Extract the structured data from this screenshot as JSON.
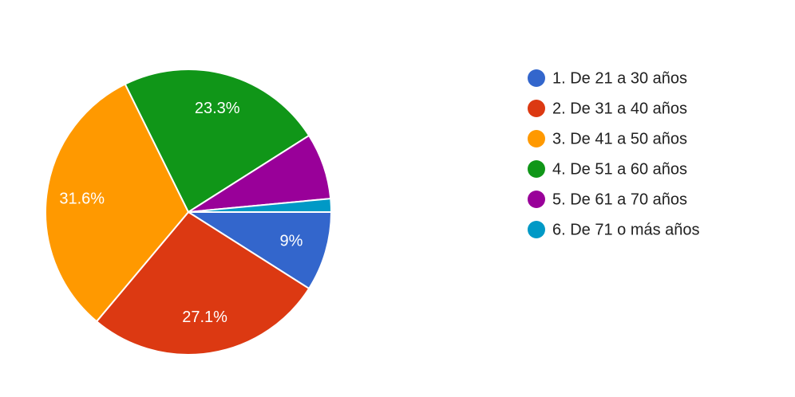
{
  "chart_data": {
    "type": "pie",
    "categories": [
      "1. De 21 a 30 años",
      "2. De 31 a 40 años",
      "3. De 41 a 50 años",
      "4. De 51 a 60 años",
      "5. De 61 a 70 años",
      "6. De 71 o más años"
    ],
    "values": [
      9,
      27.1,
      31.6,
      23.3,
      7.5,
      1.5
    ],
    "value_labels": [
      "9%",
      "27.1%",
      "31.6%",
      "23.3%",
      null,
      null
    ],
    "colors": [
      "#3366cc",
      "#dc3912",
      "#ff9900",
      "#109618",
      "#990099",
      "#0099c6"
    ],
    "legend": "right"
  }
}
